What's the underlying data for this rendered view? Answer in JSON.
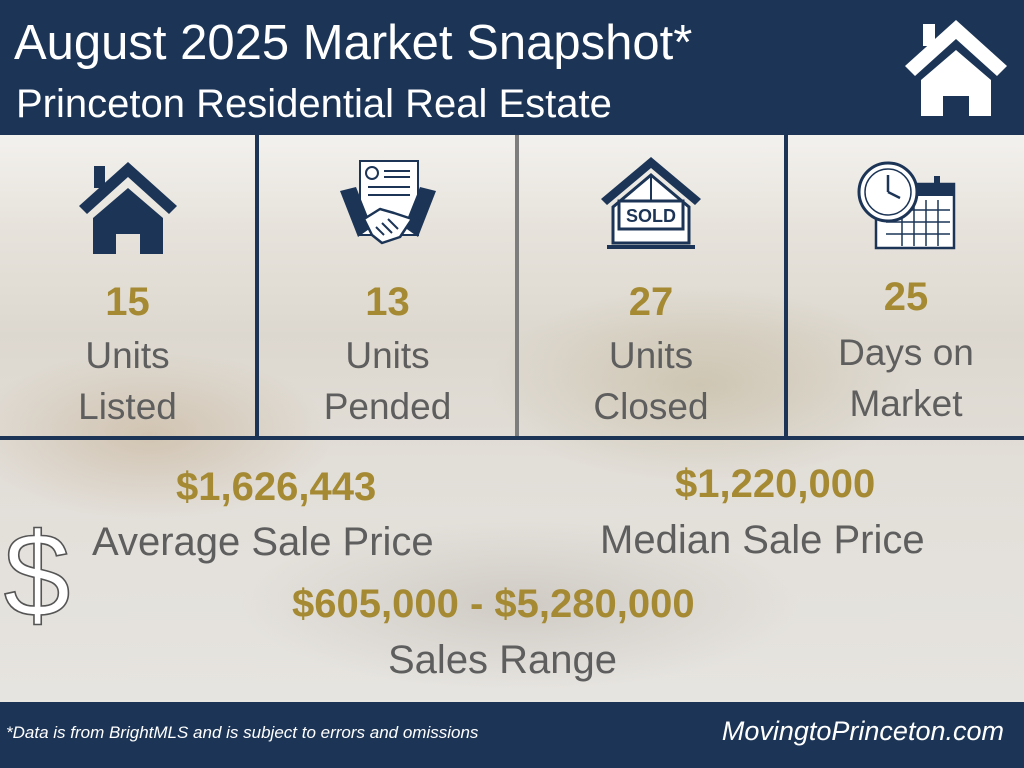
{
  "header": {
    "title": "August 2025 Market Snapshot*",
    "subtitle": "Princeton Residential Real Estate",
    "logo_icon": "house-outline-icon"
  },
  "stats": [
    {
      "icon": "house-icon",
      "value": "15",
      "label_line1": "Units",
      "label_line2": "Listed"
    },
    {
      "icon": "handshake-contract-icon",
      "value": "13",
      "label_line1": "Units",
      "label_line2": "Pended"
    },
    {
      "icon": "sold-sign-house-icon",
      "sign_text": "SOLD",
      "value": "27",
      "label_line1": "Units",
      "label_line2": "Closed"
    },
    {
      "icon": "clock-calendar-icon",
      "value": "25",
      "label_line1": "Days on",
      "label_line2": "Market"
    }
  ],
  "prices": {
    "dollar_icon": "dollar-sign-icon",
    "average_value": "$1,626,443",
    "average_label": "Average Sale Price",
    "median_value": "$1,220,000",
    "median_label": "Median Sale Price",
    "range_value": "$605,000 - $5,280,000",
    "range_label": "Sales Range"
  },
  "footer": {
    "note": "*Data is from BrightMLS and is subject to errors and omissions",
    "site": "MovingtoPrinceton.com"
  },
  "colors": {
    "navy": "#1c3557",
    "gold": "#a58a33",
    "gray_text": "#5e5e5e"
  }
}
